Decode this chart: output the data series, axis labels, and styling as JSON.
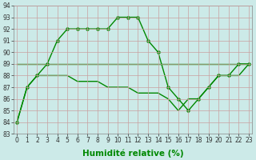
{
  "line1": {
    "x": [
      0,
      1,
      2,
      3,
      4,
      5,
      6,
      7,
      8,
      9,
      10,
      11,
      12,
      13,
      14,
      15,
      16,
      17,
      18,
      19,
      20,
      21,
      22,
      23
    ],
    "y": [
      84,
      87,
      88,
      89,
      91,
      92,
      92,
      92,
      92,
      92,
      93,
      93,
      93,
      91,
      90,
      87,
      86,
      85,
      86,
      87,
      88,
      88,
      89,
      89
    ]
  },
  "line2": {
    "x": [
      0,
      1,
      2,
      3,
      4,
      5,
      6,
      7,
      8,
      9,
      10,
      11,
      12,
      13,
      14,
      15,
      16,
      17,
      18,
      19,
      20,
      21,
      22,
      23
    ],
    "y": [
      89,
      89,
      89,
      89,
      89,
      89,
      89,
      89,
      89,
      89,
      89,
      89,
      89,
      89,
      89,
      89,
      89,
      89,
      89,
      89,
      89,
      89,
      89,
      89
    ]
  },
  "line3": {
    "x": [
      0,
      1,
      2,
      3,
      4,
      5,
      6,
      7,
      8,
      9,
      10,
      11,
      12,
      13,
      14,
      15,
      16,
      17,
      18,
      19,
      20,
      21,
      22,
      23
    ],
    "y": [
      84,
      87,
      88,
      88,
      88,
      88,
      87.5,
      87.5,
      87.5,
      87,
      87,
      87,
      86.5,
      86.5,
      86.5,
      86,
      85,
      86,
      86,
      87,
      88,
      88,
      88,
      89
    ]
  },
  "ylim": [
    83,
    94
  ],
  "xlim": [
    -0.3,
    23.3
  ],
  "yticks": [
    83,
    84,
    85,
    86,
    87,
    88,
    89,
    90,
    91,
    92,
    93,
    94
  ],
  "xticks": [
    0,
    1,
    2,
    3,
    4,
    5,
    6,
    7,
    8,
    9,
    10,
    11,
    12,
    13,
    14,
    15,
    16,
    17,
    18,
    19,
    20,
    21,
    22,
    23
  ],
  "xlabel": "Humidité relative (%)",
  "bg_color": "#cceae8",
  "grid_color": "#c8a0a0",
  "line_color": "#008800",
  "marker_color": "#008800",
  "tick_fontsize": 5.5,
  "xlabel_fontsize": 7.5,
  "linewidth": 1.0,
  "markersize": 2.5
}
